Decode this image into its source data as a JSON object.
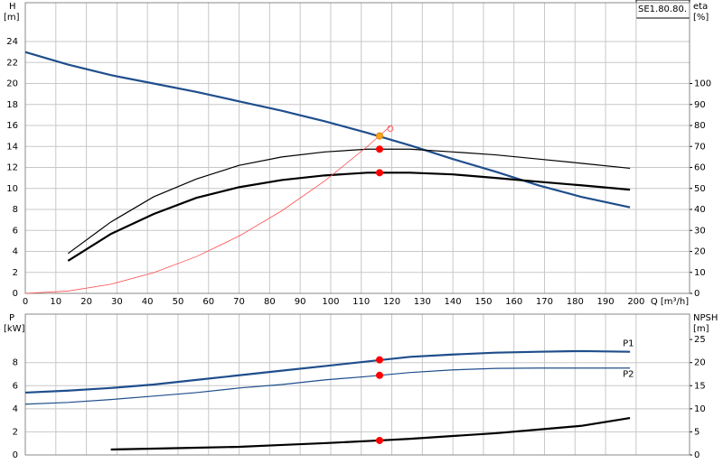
{
  "product": "SE1.80.80.",
  "chart_data": [
    {
      "type": "line",
      "ylabel": "H",
      "yunit": "[m]",
      "y2label": "eta",
      "y2unit": "[%]",
      "xlabel": "Q [m³/h]",
      "xlim": [
        0,
        217.5
      ],
      "xticks": [
        0,
        10,
        20,
        30,
        40,
        50,
        60,
        70,
        80,
        90,
        100,
        110,
        120,
        130,
        140,
        150,
        160,
        170,
        180,
        190,
        200
      ],
      "ylim": [
        0,
        27.7
      ],
      "yticks": [
        0,
        2,
        4,
        6,
        8,
        10,
        12,
        14,
        16,
        18,
        20,
        22,
        24
      ],
      "y2lim": [
        0,
        138.5
      ],
      "y2ticks": [
        0,
        10,
        20,
        30,
        40,
        50,
        60,
        70,
        80,
        90,
        100
      ],
      "grid": true,
      "show_xtick_labels": true,
      "series": [
        {
          "color": "#1f4e8c",
          "style": "thick",
          "axis": "y",
          "x": [
            0,
            14,
            28,
            42,
            56,
            70,
            84,
            98,
            112,
            126,
            140,
            154,
            168,
            182,
            198
          ],
          "values": [
            23,
            21.8,
            20.8,
            20.0,
            19.2,
            18.3,
            17.4,
            16.4,
            15.3,
            14.1,
            12.8,
            11.6,
            10.3,
            9.2,
            8.2
          ]
        },
        {
          "color": "#000000",
          "style": "thin",
          "axis": "y2",
          "x": [
            14,
            28,
            42,
            56,
            70,
            84,
            98,
            112,
            126,
            140,
            154,
            168,
            182,
            198
          ],
          "values": [
            19,
            34,
            46,
            54.5,
            61,
            65,
            67.4,
            68.7,
            68.7,
            67.4,
            66,
            64,
            62,
            59.6
          ]
        },
        {
          "color": "#000000",
          "style": "thick",
          "axis": "y2",
          "x": [
            14,
            28,
            42,
            56,
            70,
            84,
            98,
            112,
            126,
            140,
            154,
            168,
            182,
            198
          ],
          "values": [
            15.5,
            28.3,
            37.8,
            45.5,
            50.6,
            54,
            56.2,
            57.5,
            57.5,
            56.7,
            55,
            53.2,
            51.5,
            49.4
          ]
        },
        {
          "color": "#ff4d4d",
          "style": "hair",
          "axis": "y",
          "x": [
            0,
            14,
            28,
            42,
            56,
            70,
            84,
            98,
            112,
            120
          ],
          "values": [
            0,
            0.22,
            0.87,
            1.97,
            3.5,
            5.46,
            7.87,
            10.7,
            14.0,
            16.06
          ]
        }
      ],
      "markers": [
        {
          "x": 116,
          "y": 15,
          "axis": "y",
          "color": "#f5a623",
          "hollow": false
        },
        {
          "x": 116,
          "y": 68.7,
          "axis": "y2",
          "color": "#ff0000",
          "hollow": false
        },
        {
          "x": 116,
          "y": 57.5,
          "axis": "y2",
          "color": "#ff0000",
          "hollow": false
        },
        {
          "x": 119.5,
          "y": 15.7,
          "axis": "y",
          "color": "#ff6666",
          "hollow": true
        }
      ]
    },
    {
      "type": "line",
      "ylabel": "P",
      "yunit": "[kW]",
      "y2label": "NPSH",
      "y2unit": "[m]",
      "xlim": [
        0,
        217.5
      ],
      "xticks": [
        0,
        10,
        20,
        30,
        40,
        50,
        60,
        70,
        80,
        90,
        100,
        110,
        120,
        130,
        140,
        150,
        160,
        170,
        180,
        190,
        200
      ],
      "ylim": [
        0,
        12.2
      ],
      "yticks": [
        0,
        2,
        4,
        6,
        8
      ],
      "y2lim": [
        0,
        30.5
      ],
      "y2ticks": [
        0,
        5,
        10,
        15,
        20,
        25
      ],
      "grid": true,
      "show_xtick_labels": false,
      "series": [
        {
          "name": "P1",
          "color": "#1f4e8c",
          "style": "thick",
          "axis": "y",
          "x": [
            0,
            14,
            28,
            42,
            56,
            70,
            84,
            98,
            112,
            126,
            140,
            154,
            168,
            182,
            198
          ],
          "values": [
            5.4,
            5.57,
            5.8,
            6.1,
            6.5,
            6.9,
            7.3,
            7.7,
            8.1,
            8.5,
            8.7,
            8.86,
            8.94,
            9.0,
            8.94
          ]
        },
        {
          "name": "P2",
          "color": "#1f4e8c",
          "style": "thin",
          "axis": "y",
          "x": [
            0,
            14,
            28,
            42,
            56,
            70,
            84,
            98,
            112,
            126,
            140,
            154,
            168,
            182,
            198
          ],
          "values": [
            4.4,
            4.55,
            4.8,
            5.1,
            5.4,
            5.8,
            6.1,
            6.5,
            6.8,
            7.14,
            7.37,
            7.5,
            7.53,
            7.53,
            7.53
          ]
        },
        {
          "color": "#000000",
          "style": "thick",
          "axis": "y2",
          "x": [
            28,
            42,
            56,
            70,
            84,
            98,
            116,
            126,
            140,
            154,
            168,
            182,
            198
          ],
          "values": [
            1.18,
            1.37,
            1.57,
            1.76,
            2.16,
            2.55,
            3.14,
            3.5,
            4.1,
            4.7,
            5.5,
            6.3,
            8.0
          ]
        }
      ],
      "markers": [
        {
          "x": 116,
          "y": 8.24,
          "axis": "y",
          "color": "#ff0000",
          "hollow": false
        },
        {
          "x": 116,
          "y": 6.9,
          "axis": "y",
          "color": "#ff0000",
          "hollow": false
        },
        {
          "x": 116,
          "y": 3.14,
          "axis": "y2",
          "color": "#ff0000",
          "hollow": false
        }
      ]
    }
  ]
}
